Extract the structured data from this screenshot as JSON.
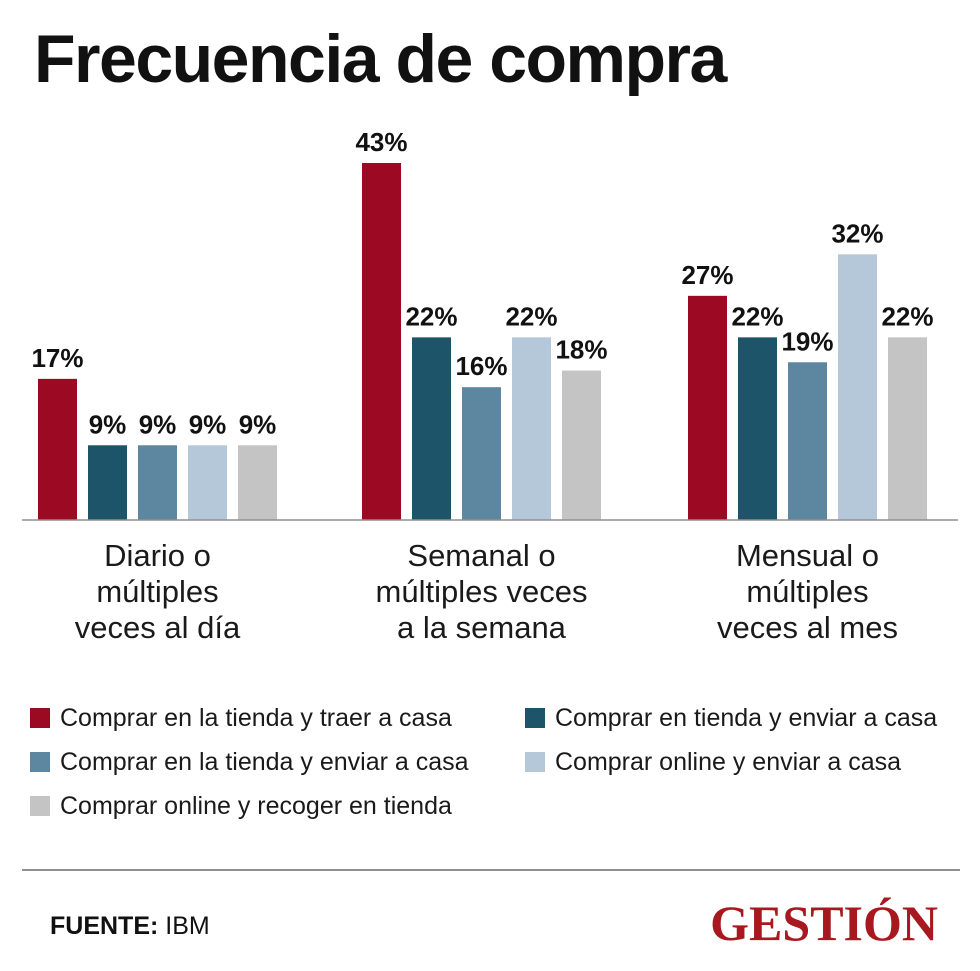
{
  "title": "Frecuencia de compra",
  "chart_data": {
    "type": "bar",
    "title": "Frecuencia de compra",
    "categories": [
      "Diario o múltiples veces al día",
      "Semanal o múltiples veces a la semana",
      "Mensual o múltiples veces al mes"
    ],
    "category_lines": [
      [
        "Diario o",
        "múltiples",
        "veces al día"
      ],
      [
        "Semanal o",
        "múltiples veces",
        "a la semana"
      ],
      [
        "Mensual o",
        "múltiples",
        "veces al mes"
      ]
    ],
    "ylim": [
      0,
      43
    ],
    "grid": false,
    "legend_position": "bottom",
    "series": [
      {
        "name": "Comprar en la tienda y traer a casa",
        "color": "#9b0a22",
        "values": [
          17,
          43,
          27
        ],
        "labels": [
          "17%",
          "43%",
          "27%"
        ]
      },
      {
        "name": "Comprar en tienda y enviar a casa",
        "color": "#1e5469",
        "values": [
          9,
          22,
          22
        ],
        "labels": [
          "9%",
          "22%",
          "22%"
        ]
      },
      {
        "name": "Comprar en la tienda y enviar a casa",
        "color": "#5d87a0",
        "values": [
          9,
          16,
          19
        ],
        "labels": [
          "9%",
          "16%",
          "19%"
        ]
      },
      {
        "name": "Comprar online y enviar a casa",
        "color": "#b4c8da",
        "values": [
          9,
          22,
          32
        ],
        "labels": [
          "9%",
          "22%",
          "32%"
        ]
      },
      {
        "name": "Comprar online y recoger en tienda",
        "color": "#c4c4c4",
        "values": [
          9,
          18,
          22
        ],
        "labels": [
          "9%",
          "18%",
          "22%"
        ]
      }
    ]
  },
  "legend": {
    "items": [
      {
        "label": "Comprar en la tienda y traer a casa",
        "color": "#9b0a22"
      },
      {
        "label": "Comprar en tienda y enviar a casa",
        "color": "#1e5469"
      },
      {
        "label": "Comprar en la tienda y enviar a casa",
        "color": "#5d87a0"
      },
      {
        "label": "Comprar online y enviar a casa",
        "color": "#b4c8da"
      },
      {
        "label": "Comprar online y recoger en tienda",
        "color": "#c4c4c4"
      }
    ]
  },
  "source": {
    "label": "FUENTE:",
    "value": "IBM"
  },
  "logo": {
    "text": "GESTIÓN",
    "color": "#a8191f"
  }
}
